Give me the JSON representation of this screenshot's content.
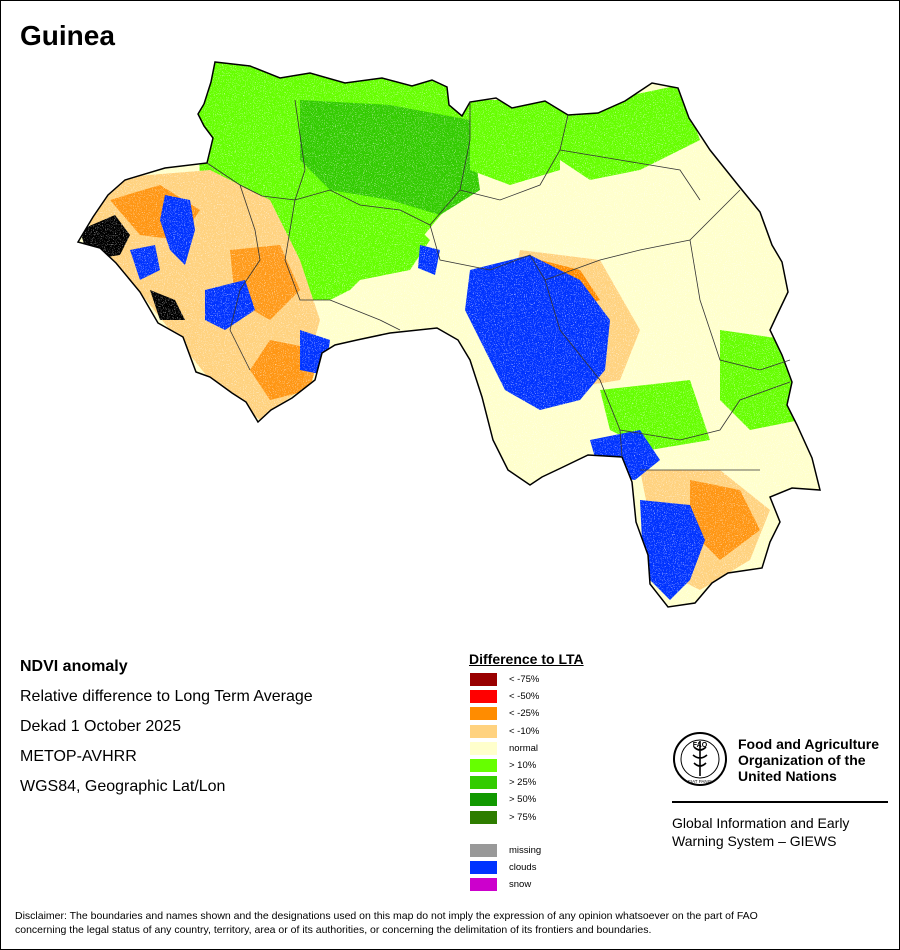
{
  "map": {
    "title": "Guinea"
  },
  "info": {
    "product": "NDVI anomaly",
    "description": "Relative difference to Long Term Average",
    "period": "Dekad 1 October 2025",
    "sensor": "METOP-AVHRR",
    "projection": "WGS84, Geographic Lat/Lon"
  },
  "legend": {
    "title": "Difference to LTA",
    "classes": [
      {
        "label": "< -75%",
        "color": "#990000"
      },
      {
        "label": "< -50%",
        "color": "#ff0000"
      },
      {
        "label": "< -25%",
        "color": "#ff8c00"
      },
      {
        "label": "< -10%",
        "color": "#ffd27f"
      },
      {
        "label": "normal",
        "color": "#ffffcc"
      },
      {
        "label": "> 10%",
        "color": "#66ff00"
      },
      {
        "label": "> 25%",
        "color": "#33cc00"
      },
      {
        "label": "> 50%",
        "color": "#119900"
      },
      {
        "label": "> 75%",
        "color": "#2e7d00"
      }
    ],
    "special": [
      {
        "label": "missing",
        "color": "#999999"
      },
      {
        "label": "clouds",
        "color": "#0033ff"
      },
      {
        "label": "snow",
        "color": "#cc00cc"
      }
    ]
  },
  "organization": {
    "name_line1": "Food and Agriculture",
    "name_line2": "Organization of the",
    "name_line3": "United Nations",
    "logo_text": "FAO",
    "logo_motto": "FIAT PANIS",
    "system_line1": "Global Information and Early",
    "system_line2": "Warning System – GIEWS"
  },
  "disclaimer": {
    "line1": "Disclaimer: The boundaries and names shown and the designations used on this map do not imply the expression of any opinion whatsoever on the part of FAO",
    "line2": "concerning the legal status of any country, territory, area or of its authorities, or concerning the delimitation of its frontiers and boundaries."
  }
}
